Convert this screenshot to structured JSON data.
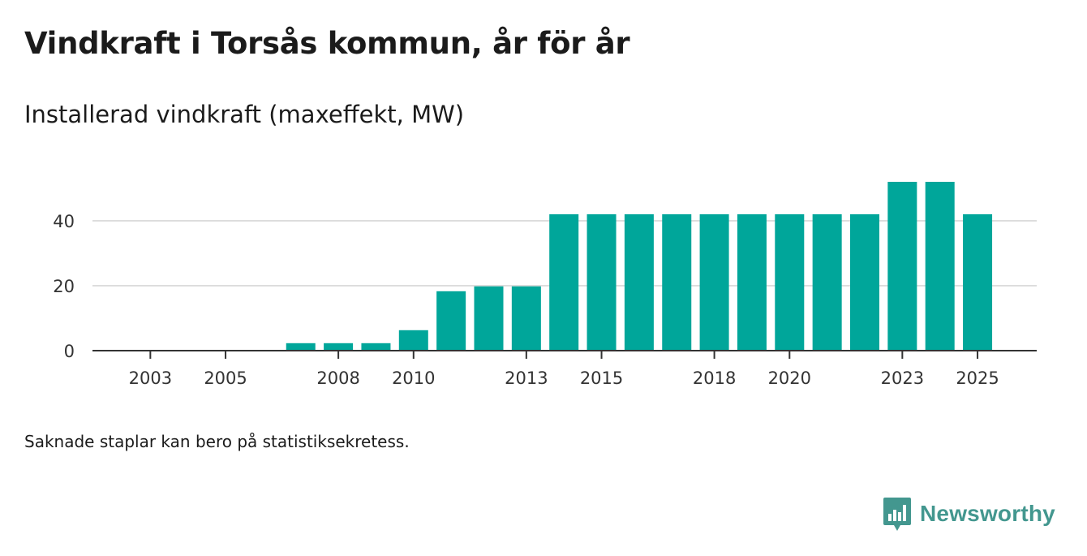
{
  "title": "Vindkraft i Torsås kommun, år för år",
  "subtitle": "Installerad vindkraft (maxeffekt, MW)",
  "footnote": "Saknade staplar kan bero på statistiksekretess.",
  "brand": {
    "name": "Newsworthy",
    "icon": "newsworthy-logo-icon",
    "color": "#43978f"
  },
  "colors": {
    "bar": "#00a69a",
    "grid": "#dddddd",
    "axis": "#333333"
  },
  "chart_data": {
    "type": "bar",
    "title": "Vindkraft i Torsås kommun, år för år",
    "ylabel": "Installerad vindkraft (maxeffekt, MW)",
    "xlabel": "",
    "categories": [
      "2002",
      "2003",
      "2004",
      "2005",
      "2006",
      "2007",
      "2008",
      "2009",
      "2010",
      "2011",
      "2012",
      "2013",
      "2014",
      "2015",
      "2016",
      "2017",
      "2018",
      "2019",
      "2020",
      "2021",
      "2022",
      "2023",
      "2024",
      "2025"
    ],
    "values": [
      0,
      0,
      0,
      0,
      0,
      2.3,
      2.3,
      2.3,
      6.3,
      18.3,
      19.8,
      19.8,
      42,
      42,
      42,
      42,
      42,
      42,
      42,
      42,
      42,
      52,
      52,
      42
    ],
    "x_tick_labels": [
      "2003",
      "2005",
      "2008",
      "2010",
      "2013",
      "2015",
      "2018",
      "2020",
      "2023",
      "2025"
    ],
    "y_ticks": [
      0,
      20,
      40
    ],
    "ylim": [
      0,
      55
    ],
    "grid": true
  }
}
